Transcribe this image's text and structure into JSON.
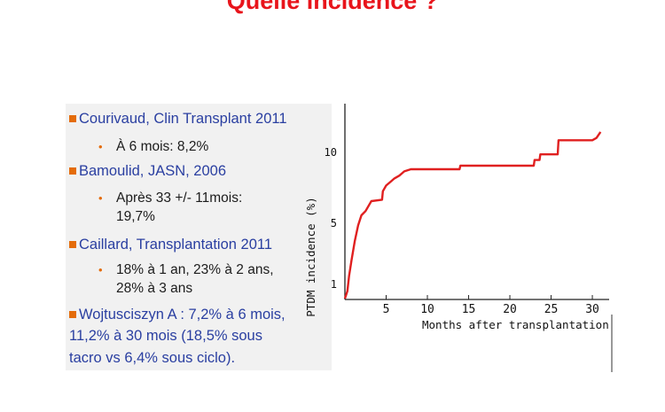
{
  "slide": {
    "title": "Quelle incidence ?",
    "refs": [
      {
        "label": "Courivaud, Clin Transplant 2011",
        "sub": [
          "À 6 mois: 8,2%"
        ]
      },
      {
        "label": "Bamoulid, JASN, 2006",
        "sub": [
          "Après 33 +/- 11mois:",
          "19,7%"
        ]
      },
      {
        "label": "Caillard, Transplantation 2011",
        "sub": [
          "18% à 1 an, 23% à 2 ans,",
          "28% à 3 ans"
        ]
      },
      {
        "label": "Wojtusciszyn A : 7,2% à 6 mois,",
        "cont": [
          "11,2% à 30 mois (18,5% sous",
          "tacro vs 6,4% sous ciclo)."
        ]
      }
    ],
    "colors": {
      "title": "#e8141b",
      "refs": "#2a3fa1",
      "bullet": "#e46c0a",
      "curve": "#e02020"
    }
  },
  "chart_data": {
    "type": "line",
    "xlabel": "Months after transplantation",
    "ylabel": "PTDM incidence (%)",
    "xticks": [
      5,
      10,
      15,
      20,
      25,
      30
    ],
    "yticks": [
      1,
      5,
      10
    ],
    "xlim": [
      0,
      31.5
    ],
    "ylim": [
      0,
      12
    ],
    "series": [
      {
        "x": [
          0,
          0.3,
          0.5,
          0.8,
          1.2,
          1.6,
          2.0,
          2.5,
          2.9,
          3.2,
          4.5,
          4.6,
          5.0,
          5.6,
          6.0,
          6.6,
          7.2,
          8.0,
          10.0,
          13.9,
          14.0,
          19.0,
          22.9,
          23.0,
          23.6,
          23.7,
          25.8,
          25.9,
          28.0,
          30.0,
          30.5,
          31.0
        ],
        "y": [
          0,
          0.5,
          1.5,
          2.5,
          3.8,
          4.8,
          5.5,
          5.8,
          6.2,
          6.5,
          6.6,
          7.2,
          7.6,
          7.9,
          8.1,
          8.3,
          8.6,
          8.75,
          8.75,
          8.75,
          9.0,
          9.0,
          9.0,
          9.4,
          9.4,
          9.8,
          9.8,
          10.75,
          10.75,
          10.75,
          10.9,
          11.3
        ]
      }
    ]
  }
}
